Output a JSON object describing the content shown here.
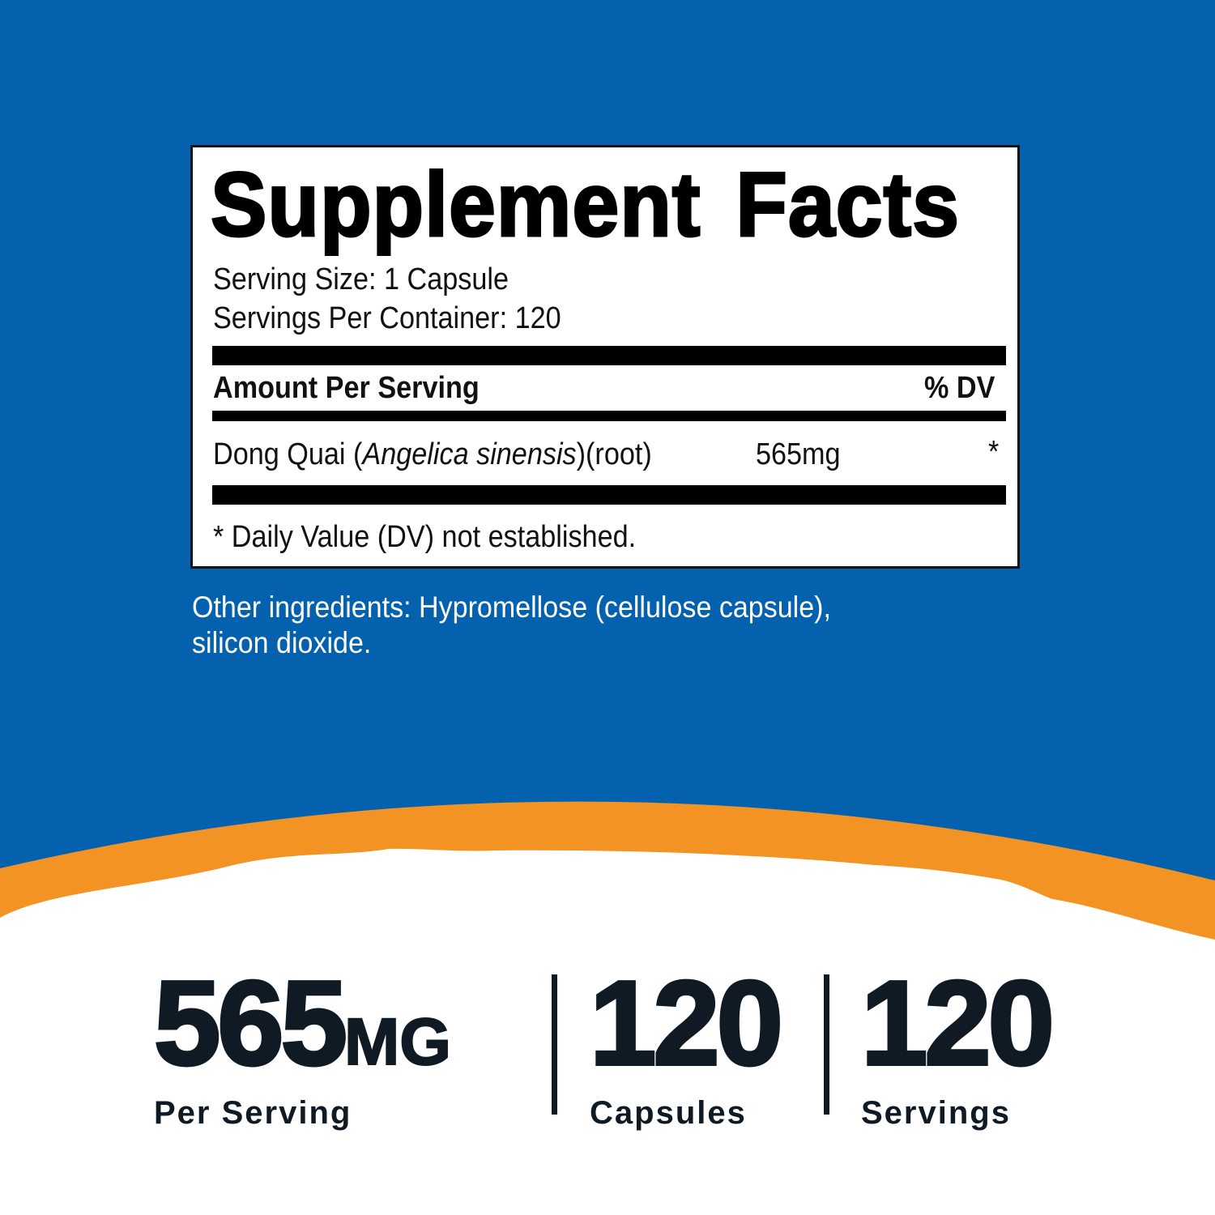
{
  "colors": {
    "background_blue": "#0461ae",
    "accent_orange": "#f39323",
    "text_dark": "#0f1a24"
  },
  "facts": {
    "title": "Supplement Facts",
    "serving_size": "Serving Size: 1 Capsule",
    "servings_per_container": "Servings Per Container: 120",
    "amount_header": "Amount Per Serving",
    "dv_header": "% DV",
    "ingredient": {
      "name": "Dong Quai (",
      "latin": "Angelica sinensis",
      "part": ")(root)",
      "amount": "565mg",
      "dv": "*"
    },
    "footnote": "* Daily Value (DV) not established."
  },
  "other_ingredients": {
    "line1": "Other ingredients: Hypromellose (cellulose capsule),",
    "line2": "silicon dioxide."
  },
  "stats": [
    {
      "value": "565",
      "unit": "MG",
      "label": "Per Serving"
    },
    {
      "value": "120",
      "label": "Capsules"
    },
    {
      "value": "120",
      "label": "Servings"
    }
  ]
}
